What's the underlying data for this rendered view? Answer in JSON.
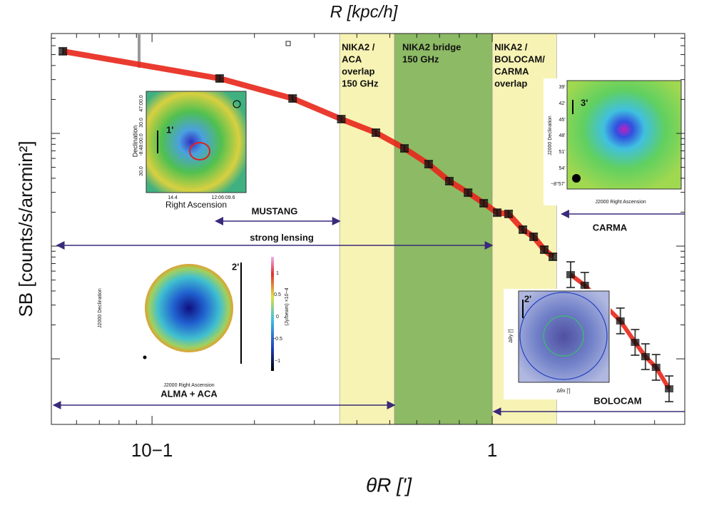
{
  "chart_data": {
    "type": "scatter",
    "top_label": "R [kpc/h]",
    "xlabel": "θR [']",
    "ylabel": "SB [counts/s/arcmin²]",
    "xlog": true,
    "ylog": true,
    "xlim": [
      0.0506,
      3.68
    ],
    "ylim": [
      0.00262,
      7.69
    ],
    "xticks": [
      {
        "value": 0.1,
        "label": "10−1"
      },
      1
    ],
    "xminorticks": [
      0.06,
      0.07,
      0.08,
      0.09,
      0.2,
      0.3,
      0.4,
      0.5,
      0.6,
      0.7,
      0.8,
      0.9,
      2,
      3
    ],
    "yticks": [
      0.01,
      0.1,
      1
    ],
    "band_color": "#e8261a",
    "marker_color": "#111",
    "series": [
      {
        "x": [
          0.0547,
          0.158,
          0.259,
          0.36,
          0.455,
          0.552,
          0.65,
          0.748,
          0.849,
          0.944,
          1.034,
          1.117,
          1.23,
          1.323,
          1.422,
          1.507
        ],
        "values": [
          5.35,
          3.07,
          2.04,
          1.339,
          1.015,
          0.736,
          0.534,
          0.377,
          0.298,
          0.24,
          0.198,
          0.193,
          0.14,
          0.121,
          0.093,
          0.0804
        ]
      },
      {
        "x": [
          1.7,
          1.87,
          2.38,
          2.63,
          2.82,
          3.03,
          3.31
        ],
        "values": [
          0.0558,
          0.0449,
          0.0217,
          0.014,
          0.01045,
          0.0084,
          0.00542
        ]
      }
    ],
    "regions": [
      {
        "range": [
          0.356,
          0.516
        ],
        "color": "#f7f3b4",
        "lines": [
          "NIKA2 /",
          "ACA",
          "overlap",
          "150 GHz"
        ]
      },
      {
        "range": [
          0.516,
          1
        ],
        "color": "#8dba65",
        "lines": [
          "NIKA2 bridge",
          "150 GHz"
        ]
      },
      {
        "range": [
          1,
          1.545
        ],
        "color": "#f7f3b4",
        "lines": [
          "NIKA2 /",
          "BOLOCAM/",
          "CARMA",
          "overlap"
        ]
      }
    ],
    "arrows": [
      {
        "label": "MUSTANG",
        "range": [
          0.154,
          0.356
        ]
      },
      {
        "label": "strong lensing",
        "range": [
          0.0526,
          1
        ]
      },
      {
        "label": "CARMA",
        "range": [
          3.68,
          1.6
        ]
      },
      {
        "label": "BOLOCAM",
        "range": [
          3.68,
          1.01
        ]
      },
      {
        "range": [
          0.0514,
          0.516
        ]
      }
    ],
    "insets": [
      {
        "texts": [
          "Declination",
          "Right Ascension",
          "1'",
          "47:00.0",
          "30.0",
          "-8:48:00.0",
          "30.0",
          "14.4",
          "12:06:09.6"
        ]
      },
      {
        "texts": [
          "J2000 Declination",
          "J2000 Right Ascension",
          "3'",
          "39'",
          "42'",
          "45'",
          "48'",
          "51'",
          "54'",
          "−8°57'"
        ]
      },
      {
        "texts": [
          "ALMA + ACA",
          "J2000 Declination",
          "J2000 Right Ascension",
          "2'",
          "(Jy/beam) ×10−4",
          "1",
          "0.5",
          "0",
          "−0.5",
          "−1"
        ]
      },
      {
        "texts": [
          "2'",
          "Δθx [']",
          "Δθy [']"
        ]
      }
    ]
  }
}
